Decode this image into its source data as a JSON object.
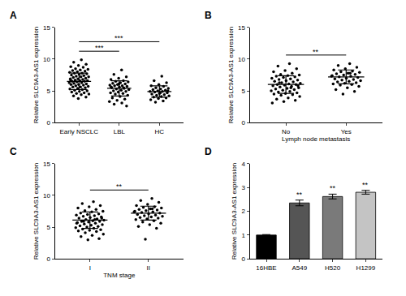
{
  "chart_data": [
    {
      "panel": "A",
      "type": "scatter",
      "ylabel": "Relative SLC9A3-AS1 expression",
      "xlabel": null,
      "categories": [
        "Early NSCLC",
        "LBL",
        "HC"
      ],
      "values": [
        [
          9.9,
          9.5,
          9.2,
          9.0,
          8.8,
          8.7,
          8.5,
          8.4,
          8.3,
          8.2,
          8.1,
          8.0,
          7.9,
          7.8,
          7.8,
          7.7,
          7.6,
          7.5,
          7.4,
          7.3,
          7.2,
          7.2,
          7.1,
          7.0,
          6.9,
          6.9,
          6.8,
          6.7,
          6.6,
          6.6,
          6.5,
          6.5,
          6.4,
          6.3,
          6.3,
          6.2,
          6.1,
          6.0,
          6.0,
          5.9,
          5.8,
          5.7,
          5.6,
          5.6,
          5.5,
          5.4,
          5.3,
          5.2,
          5.1,
          5.0,
          4.9,
          4.8,
          4.7,
          4.6,
          4.5,
          4.4,
          4.2,
          4.0,
          3.8,
          6.7
        ],
        [
          8.3,
          7.6,
          7.2,
          7.0,
          6.8,
          6.6,
          6.5,
          6.4,
          6.3,
          6.2,
          6.1,
          6.0,
          5.9,
          5.8,
          5.8,
          5.7,
          5.6,
          5.5,
          5.4,
          5.3,
          5.2,
          5.1,
          5.0,
          4.9,
          4.8,
          4.7,
          4.6,
          4.5,
          4.3,
          4.1,
          3.9,
          3.7,
          3.5,
          3.3,
          3.1,
          2.9,
          2.6,
          6.1,
          5.6,
          5.5
        ],
        [
          7.3,
          6.6,
          6.3,
          6.0,
          5.8,
          5.7,
          5.5,
          5.4,
          5.3,
          5.2,
          5.1,
          5.0,
          4.9,
          4.9,
          4.8,
          4.7,
          4.6,
          4.5,
          4.4,
          4.3,
          4.2,
          4.1,
          4.0,
          3.9,
          3.8,
          3.6,
          3.4,
          3.2,
          5.0,
          4.7
        ]
      ],
      "mean": [
        6.5,
        5.4,
        4.9
      ],
      "sd": [
        1.3,
        1.2,
        0.9
      ],
      "significance": [
        {
          "from": "Early NSCLC",
          "to": "LBL",
          "label": "***"
        },
        {
          "from": "Early NSCLC",
          "to": "HC",
          "label": "***"
        }
      ],
      "color": "#000000",
      "marker": "circle",
      "ylim": [
        0,
        15
      ],
      "yticks": [
        0,
        5,
        10,
        15
      ],
      "grid": false
    },
    {
      "panel": "B",
      "type": "scatter",
      "ylabel": "Relative SLC9A3-AS1 expression",
      "xlabel": "Lymph node metastasis",
      "categories": [
        "No",
        "Yes"
      ],
      "values": [
        [
          9.3,
          8.9,
          8.5,
          8.2,
          8.0,
          7.8,
          7.6,
          7.5,
          7.4,
          7.3,
          7.2,
          7.1,
          7.0,
          6.9,
          6.8,
          6.7,
          6.6,
          6.5,
          6.4,
          6.3,
          6.2,
          6.1,
          6.0,
          6.0,
          5.9,
          5.8,
          5.7,
          5.6,
          5.5,
          5.4,
          5.3,
          5.2,
          5.1,
          5.0,
          4.9,
          4.8,
          4.7,
          4.6,
          4.5,
          4.4,
          4.3,
          4.1,
          3.9,
          3.7,
          3.5,
          3.3,
          3.1,
          5.5,
          6.3,
          5.8
        ],
        [
          9.3,
          9.0,
          8.7,
          8.5,
          8.3,
          8.1,
          8.0,
          7.9,
          7.8,
          7.7,
          7.6,
          7.5,
          7.4,
          7.3,
          7.2,
          7.1,
          7.0,
          6.9,
          6.8,
          6.7,
          6.6,
          6.5,
          6.4,
          6.3,
          6.2,
          6.1,
          6.0,
          5.9,
          5.7,
          5.5,
          5.2,
          4.9,
          4.5,
          7.3,
          7.8
        ]
      ],
      "mean": [
        6.0,
        7.2
      ],
      "sd": [
        1.4,
        1.1
      ],
      "significance": [
        {
          "from": "No",
          "to": "Yes",
          "label": "**"
        }
      ],
      "color": "#000000",
      "marker": "circle",
      "ylim": [
        0,
        15
      ],
      "yticks": [
        0,
        5,
        10,
        15
      ],
      "grid": false
    },
    {
      "panel": "C",
      "type": "scatter",
      "ylabel": "Relative SLC9A3-AS1 expression",
      "xlabel": "TNM stage",
      "categories": [
        "I",
        "II"
      ],
      "values": [
        [
          9.0,
          8.7,
          8.4,
          8.2,
          8.0,
          7.8,
          7.6,
          7.5,
          7.4,
          7.2,
          7.1,
          7.0,
          6.9,
          6.8,
          6.7,
          6.6,
          6.5,
          6.4,
          6.3,
          6.2,
          6.1,
          6.0,
          5.9,
          5.9,
          5.8,
          5.7,
          5.6,
          5.5,
          5.4,
          5.3,
          5.2,
          5.1,
          5.0,
          4.9,
          4.8,
          4.7,
          4.6,
          4.5,
          4.4,
          4.3,
          4.1,
          3.9,
          3.7,
          3.5,
          3.2,
          3.0,
          5.6,
          6.2,
          5.9,
          6.4
        ],
        [
          9.5,
          9.2,
          8.9,
          8.6,
          8.4,
          8.2,
          8.1,
          8.0,
          7.9,
          7.8,
          7.7,
          7.6,
          7.5,
          7.4,
          7.3,
          7.2,
          7.1,
          7.0,
          6.9,
          6.8,
          6.7,
          6.6,
          6.5,
          6.4,
          6.3,
          6.2,
          6.0,
          5.8,
          5.6,
          5.4,
          5.1,
          4.8,
          3.1,
          7.4,
          7.9
        ]
      ],
      "mean": [
        6.1,
        7.2
      ],
      "sd": [
        1.3,
        1.1
      ],
      "significance": [
        {
          "from": "I",
          "to": "II",
          "label": "**"
        }
      ],
      "color": "#000000",
      "marker": "circle",
      "ylim": [
        0,
        15
      ],
      "yticks": [
        0,
        5,
        10,
        15
      ],
      "grid": false
    },
    {
      "panel": "D",
      "type": "bar",
      "ylabel": "Relative SLC9A3-AS1 expression",
      "xlabel": null,
      "categories": [
        "16HBE",
        "A549",
        "H520",
        "H1299"
      ],
      "values": [
        1.0,
        2.35,
        2.62,
        2.8
      ],
      "sd": [
        0.02,
        0.12,
        0.1,
        0.08
      ],
      "colors": [
        "#000000",
        "#555555",
        "#7a7a7a",
        "#c4c4c4"
      ],
      "significance": [
        {
          "category": "A549",
          "label": "**"
        },
        {
          "category": "H520",
          "label": "**"
        },
        {
          "category": "H1299",
          "label": "**"
        }
      ],
      "ylim": [
        0,
        4
      ],
      "yticks": [
        0,
        1,
        2,
        3,
        4
      ],
      "grid": false
    }
  ]
}
